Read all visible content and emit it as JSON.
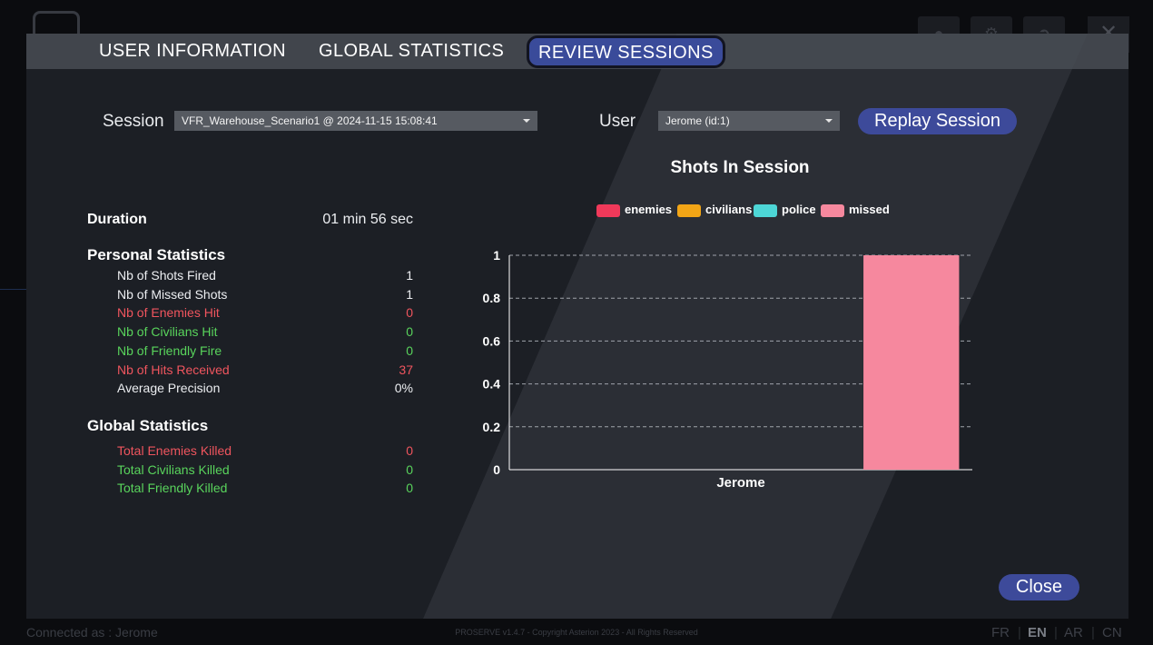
{
  "tabs": [
    {
      "label": "USER INFORMATION",
      "active": false
    },
    {
      "label": "GLOBAL STATISTICS",
      "active": false
    },
    {
      "label": "REVIEW SESSIONS",
      "active": true
    }
  ],
  "session": {
    "label": "Session",
    "selected": "VFR_Warehouse_Scenario1 @ 2024-11-15 15:08:41"
  },
  "user": {
    "label": "User",
    "selected": "Jerome (id:1)"
  },
  "replay_button": "Replay Session",
  "duration": {
    "label": "Duration",
    "value": "01 min 56 sec"
  },
  "personal": {
    "title": "Personal Statistics",
    "rows": [
      {
        "label": "Nb of Shots Fired",
        "value": "1",
        "color": "#eceef1"
      },
      {
        "label": "Nb of Missed Shots",
        "value": "1",
        "color": "#eceef1"
      },
      {
        "label": "Nb of Enemies Hit",
        "value": "0",
        "color": "#f0555e"
      },
      {
        "label": "Nb of Civilians Hit",
        "value": "0",
        "color": "#59d45c"
      },
      {
        "label": "Nb of Friendly Fire",
        "value": "0",
        "color": "#59d45c"
      },
      {
        "label": "Nb of Hits Received",
        "value": "37",
        "color": "#f0555e"
      },
      {
        "label": "Average Precision",
        "value": "0%",
        "color": "#eceef1"
      }
    ]
  },
  "global": {
    "title": "Global Statistics",
    "rows": [
      {
        "label": "Total Enemies Killed",
        "value": "0",
        "color": "#f0555e"
      },
      {
        "label": "Total Civilians Killed",
        "value": "0",
        "color": "#59d45c"
      },
      {
        "label": "Total Friendly Killed",
        "value": "0",
        "color": "#59d45c"
      }
    ]
  },
  "chart_data": {
    "type": "bar",
    "title": "Shots In Session",
    "categories": [
      "Jerome"
    ],
    "series": [
      {
        "name": "enemies",
        "color": "#f0395a",
        "values": [
          0
        ]
      },
      {
        "name": "civilians",
        "color": "#f2a516",
        "values": [
          0
        ]
      },
      {
        "name": "police",
        "color": "#4dd6d6",
        "values": [
          0
        ]
      },
      {
        "name": "missed",
        "color": "#f6889e",
        "values": [
          1
        ]
      }
    ],
    "ylim": [
      0,
      1
    ],
    "yticks": [
      "0",
      "0.2",
      "0.4",
      "0.6",
      "0.8",
      "1"
    ],
    "grid": true,
    "legend": "top"
  },
  "close_button": "Close",
  "footer": {
    "connected": "Connected as : Jerome",
    "copyright": "PROSERVE v1.4.7 - Copyright Asterion 2023 - All Rights Reserved"
  },
  "languages": [
    {
      "code": "FR",
      "active": false
    },
    {
      "code": "EN",
      "active": true
    },
    {
      "code": "AR",
      "active": false
    },
    {
      "code": "CN",
      "active": false
    }
  ]
}
